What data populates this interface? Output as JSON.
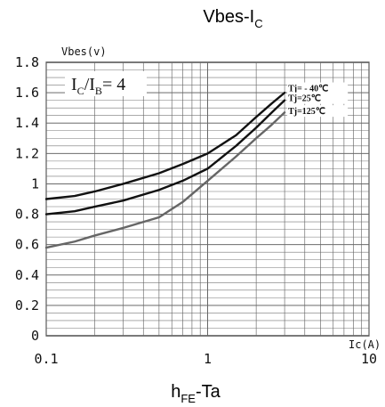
{
  "chart_data": {
    "type": "line",
    "title": {
      "main": "Vbes-I",
      "sub": "C"
    },
    "footer_title": {
      "prefix": "h",
      "sub": "FE",
      "suffix": "-Ta"
    },
    "inset_label": {
      "ic": "I",
      "ic_sub": "C",
      "slash": "/",
      "ib": "I",
      "ib_sub": "B",
      "eq": "= 4"
    },
    "ylabel": "Vbes(v)",
    "xlabel": "Ic(A)",
    "xscale": "log",
    "xlim": [
      0.1,
      10
    ],
    "ylim": [
      0,
      1.8
    ],
    "grid": true,
    "x_ticks": [
      {
        "value": 0.1,
        "label": "0.1"
      },
      {
        "value": 1,
        "label": "1"
      },
      {
        "value": 10,
        "label": "10"
      }
    ],
    "y_ticks": [
      {
        "value": 0,
        "label": "0"
      },
      {
        "value": 0.2,
        "label": "0.2"
      },
      {
        "value": 0.4,
        "label": "0.4"
      },
      {
        "value": 0.6,
        "label": "0.6"
      },
      {
        "value": 0.8,
        "label": "0.8"
      },
      {
        "value": 1.0,
        "label": "1"
      },
      {
        "value": 1.2,
        "label": "1.2"
      },
      {
        "value": 1.4,
        "label": "1.4"
      },
      {
        "value": 1.6,
        "label": "1.6"
      },
      {
        "value": 1.8,
        "label": "1.8"
      }
    ],
    "series": [
      {
        "name": "Tj= - 40℃",
        "color": "#111111",
        "label_at": [
          3.0,
          1.615
        ],
        "x": [
          0.1,
          0.15,
          0.2,
          0.3,
          0.5,
          0.7,
          1.0,
          1.5,
          2.0,
          2.5,
          3.0
        ],
        "y": [
          0.9,
          0.92,
          0.95,
          1.0,
          1.07,
          1.13,
          1.2,
          1.32,
          1.44,
          1.53,
          1.6
        ]
      },
      {
        "name": "Tj=25℃",
        "color": "#111111",
        "label_at": [
          3.0,
          1.55
        ],
        "x": [
          0.1,
          0.15,
          0.2,
          0.3,
          0.5,
          0.7,
          1.0,
          1.5,
          2.0,
          2.5,
          3.0
        ],
        "y": [
          0.8,
          0.82,
          0.85,
          0.89,
          0.96,
          1.02,
          1.1,
          1.25,
          1.37,
          1.47,
          1.55
        ]
      },
      {
        "name": "Tj=125℃",
        "color": "#666666",
        "label_at": [
          3.0,
          1.465
        ],
        "x": [
          0.1,
          0.15,
          0.2,
          0.3,
          0.5,
          0.7,
          1.0,
          1.5,
          2.0,
          2.5,
          3.0
        ],
        "y": [
          0.58,
          0.62,
          0.66,
          0.71,
          0.78,
          0.88,
          1.02,
          1.18,
          1.3,
          1.39,
          1.47
        ]
      }
    ]
  }
}
